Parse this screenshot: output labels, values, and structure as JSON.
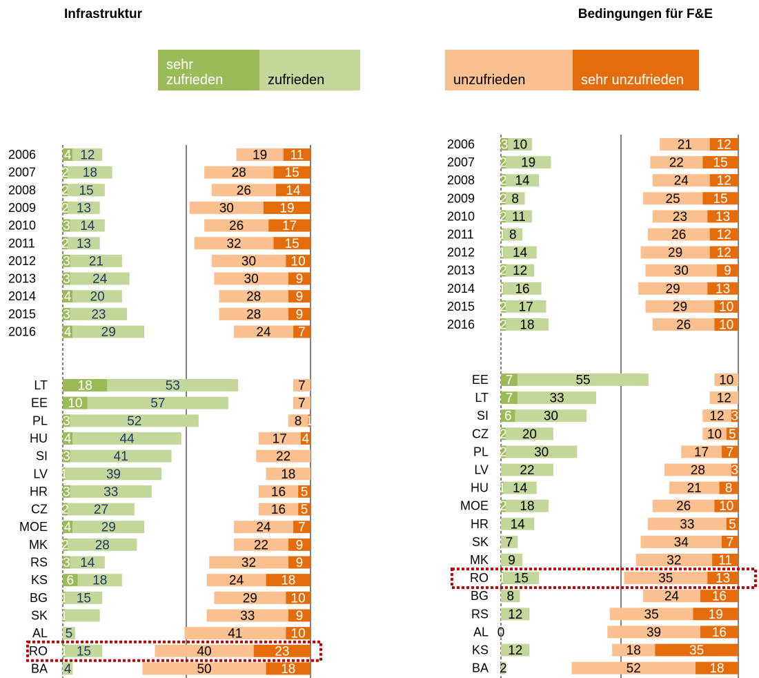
{
  "chart_data": [
    {
      "type": "diverging_bar",
      "title": "Infrastruktur",
      "categories": [
        "2006",
        "2007",
        "2008",
        "2009",
        "2010",
        "2011",
        "2012",
        "2013",
        "2014",
        "2015",
        "2016",
        "LT",
        "EE",
        "PL",
        "HU",
        "SI",
        "LV",
        "HR",
        "CZ",
        "MOE",
        "MK",
        "RS",
        "KS",
        "BG",
        "SK",
        "AL",
        "RO",
        "BA"
      ],
      "highlight": "RO",
      "series": [
        {
          "name": "sehr zufrieden",
          "color": "#9bbb59",
          "values": [
            4,
            2,
            2,
            2,
            3,
            2,
            3,
            3,
            4,
            3,
            4,
            18,
            10,
            3,
            4,
            3,
            1,
            3,
            2,
            4,
            2,
            3,
            6,
            1,
            1,
            null,
            1,
            null
          ]
        },
        {
          "name": "zufrieden",
          "color": "#c4d79b",
          "values": [
            12,
            18,
            15,
            13,
            14,
            13,
            21,
            24,
            20,
            23,
            29,
            53,
            57,
            52,
            44,
            41,
            39,
            33,
            27,
            29,
            28,
            14,
            18,
            15,
            14,
            5,
            15,
            4
          ],
          "value_labels": [
            "12",
            "18",
            "15",
            "13",
            "14",
            "13",
            "21",
            "24",
            "20",
            "23",
            "29",
            "53",
            "57",
            "52",
            "44",
            "41",
            "39",
            "33",
            "27",
            "29",
            "28",
            "14",
            "18",
            "15",
            null,
            "5",
            "15",
            "4"
          ]
        },
        {
          "name": "unzufrieden",
          "color": "#fac090",
          "values": [
            19,
            28,
            26,
            30,
            26,
            32,
            30,
            30,
            28,
            28,
            24,
            7,
            7,
            8,
            17,
            22,
            18,
            16,
            16,
            24,
            22,
            32,
            24,
            29,
            33,
            41,
            40,
            50
          ]
        },
        {
          "name": "sehr unzufrieden",
          "color": "#e46c0a",
          "values": [
            11,
            15,
            14,
            19,
            17,
            15,
            10,
            9,
            9,
            9,
            7,
            null,
            null,
            1,
            4,
            null,
            null,
            5,
            5,
            7,
            9,
            9,
            18,
            10,
            9,
            10,
            23,
            18
          ]
        }
      ]
    },
    {
      "type": "diverging_bar",
      "title": "Bedingungen für F&E",
      "categories": [
        "2006",
        "2007",
        "2008",
        "2009",
        "2010",
        "2011",
        "2012",
        "2013",
        "2014",
        "2015",
        "2016",
        "EE",
        "LT",
        "SI",
        "CZ",
        "PL",
        "LV",
        "HU",
        "MOE",
        "HR",
        "SK",
        "MK",
        "RO",
        "BG",
        "RS",
        "AL",
        "KS",
        "BA"
      ],
      "highlight": "RO",
      "series": [
        {
          "name": "sehr zufrieden",
          "color": "#9bbb59",
          "values": [
            3,
            2,
            2,
            2,
            2,
            1,
            1,
            2,
            1,
            2,
            2,
            7,
            7,
            6,
            2,
            2,
            null,
            1,
            2,
            null,
            null,
            null,
            1,
            null,
            null,
            null,
            null,
            null
          ]
        },
        {
          "name": "zufrieden",
          "color": "#c4d79b",
          "values": [
            10,
            19,
            14,
            8,
            11,
            8,
            14,
            12,
            16,
            17,
            18,
            55,
            33,
            30,
            20,
            30,
            22,
            14,
            18,
            14,
            7,
            9,
            15,
            8,
            12,
            0,
            12,
            2
          ]
        },
        {
          "name": "unzufrieden",
          "color": "#fac090",
          "values": [
            21,
            22,
            24,
            25,
            23,
            26,
            29,
            30,
            29,
            29,
            26,
            10,
            12,
            12,
            10,
            17,
            28,
            21,
            26,
            33,
            34,
            32,
            35,
            24,
            35,
            39,
            18,
            52
          ]
        },
        {
          "name": "sehr unzufrieden",
          "color": "#e46c0a",
          "values": [
            12,
            15,
            12,
            15,
            13,
            12,
            12,
            9,
            13,
            10,
            10,
            null,
            null,
            3,
            5,
            7,
            3,
            8,
            10,
            5,
            7,
            11,
            13,
            16,
            19,
            16,
            35,
            18
          ]
        }
      ]
    }
  ]
}
